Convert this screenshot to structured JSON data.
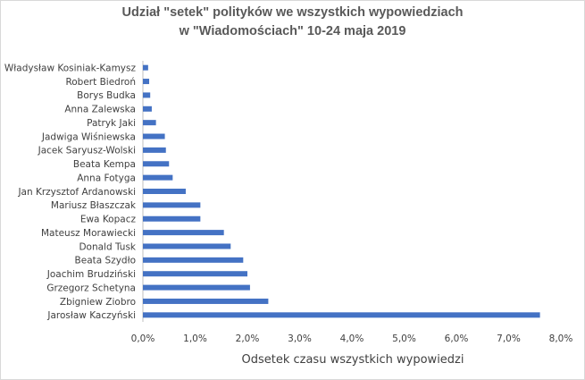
{
  "chart_data": {
    "type": "bar",
    "orientation": "horizontal",
    "title": [
      "Udział \"setek\" polityków we wszystkich wypowiedziach",
      "w \"Wiadomościach\" 10-24 maja 2019"
    ],
    "xlabel": "Odsetek czasu wszystkich wypowiedzi",
    "ylabel": "",
    "xlim": [
      0,
      8
    ],
    "xticks": [
      "0,0%",
      "1,0%",
      "2,0%",
      "3,0%",
      "4,0%",
      "5,0%",
      "6,0%",
      "7,0%",
      "8,0%"
    ],
    "grid": false,
    "bar_color": "#4472c4",
    "categories": [
      "Władysław Kosiniak-Kamysz",
      "Robert Biedroń",
      "Borys Budka",
      "Anna Zalewska",
      "Patryk Jaki",
      "Jadwiga Wiśniewska",
      "Jacek Saryusz-Wolski",
      "Beata Kempa",
      "Anna Fotyga",
      "Jan Krzysztof Ardanowski",
      "Mariusz Błaszczak",
      "Ewa Kopacz",
      "Mateusz Morawiecki",
      "Donald Tusk",
      "Beata Szydło",
      "Joachim Brudziński",
      "Grzegorz Schetyna",
      "Zbigniew Ziobro",
      "Jarosław Kaczyński"
    ],
    "values": [
      0.1,
      0.12,
      0.14,
      0.17,
      0.25,
      0.42,
      0.44,
      0.5,
      0.57,
      0.82,
      1.1,
      1.1,
      1.55,
      1.68,
      1.92,
      2.0,
      2.05,
      2.4,
      7.6
    ]
  }
}
